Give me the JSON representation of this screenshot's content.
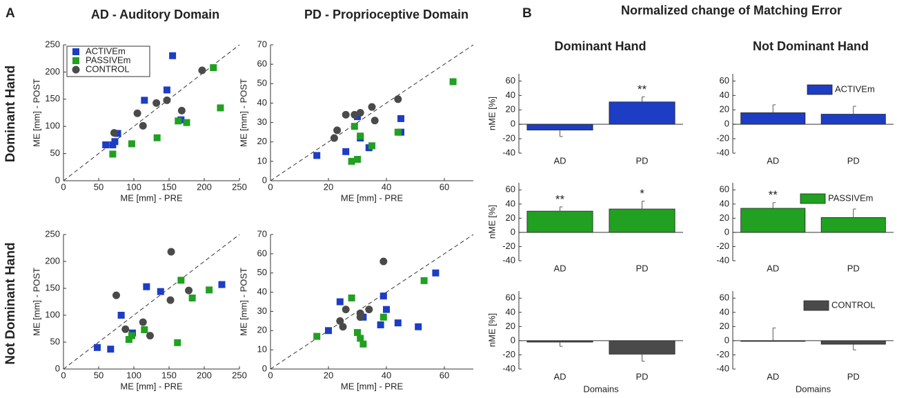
{
  "figure": {
    "panels": [
      "A",
      "B"
    ],
    "scatter_columns": [
      "AD - Auditory Domain",
      "PD - Proprioceptive Domain"
    ],
    "scatter_rows": [
      "Dominant Hand",
      "Not Dominant Hand"
    ],
    "bar_title": "Normalized change of Matching Error",
    "bar_columns": [
      "Dominant Hand",
      "Not Dominant Hand"
    ]
  },
  "chart_data": [
    {
      "type": "scatter",
      "xlabel": "ME [mm] - PRE",
      "ylabel": "ME [mm] - POST",
      "xlim": [
        0,
        250
      ],
      "ylim": [
        0,
        250
      ],
      "xticks": [
        0,
        50,
        100,
        150,
        200,
        250
      ],
      "yticks": [
        0,
        50,
        100,
        150,
        200,
        250
      ],
      "legend": "upper left",
      "series": [
        {
          "name": "ACTIVEm",
          "color": "#1c3dc4",
          "marker": "square",
          "x": [
            60,
            70,
            73,
            77,
            115,
            147,
            155,
            167
          ],
          "values": [
            66,
            66,
            72,
            87,
            148,
            167,
            230,
            112
          ]
        },
        {
          "name": "PASSIVEm",
          "color": "#21a021",
          "marker": "square",
          "x": [
            70,
            97,
            133,
            163,
            175,
            213,
            223
          ],
          "values": [
            49,
            68,
            79,
            110,
            107,
            208,
            134
          ]
        },
        {
          "name": "CONTROL",
          "color": "#4a4a4a",
          "marker": "circle",
          "x": [
            72,
            113,
            105,
            132,
            147,
            168,
            197
          ],
          "values": [
            88,
            101,
            124,
            143,
            148,
            129,
            203
          ]
        }
      ]
    },
    {
      "type": "scatter",
      "xlabel": "ME [mm] - PRE",
      "ylabel": "ME [mm] - POST",
      "xlim": [
        0,
        70
      ],
      "ylim": [
        0,
        70
      ],
      "xticks": [
        0,
        20,
        40,
        60
      ],
      "yticks": [
        0,
        10,
        20,
        30,
        40,
        50,
        60,
        70
      ],
      "series": [
        {
          "color": "#1c3dc4",
          "marker": "square",
          "x": [
            16,
            26,
            30,
            31,
            34,
            45,
            45
          ],
          "values": [
            13,
            15,
            33,
            22,
            17,
            25,
            32
          ]
        },
        {
          "color": "#21a021",
          "marker": "square",
          "x": [
            28,
            29,
            30,
            31,
            35,
            44,
            63
          ],
          "values": [
            10,
            28,
            11,
            23,
            18,
            25,
            51
          ]
        },
        {
          "color": "#4a4a4a",
          "marker": "circle",
          "x": [
            22,
            23,
            26,
            29,
            31,
            35,
            36,
            44
          ],
          "values": [
            22,
            26,
            34,
            34,
            35,
            38,
            31,
            42
          ]
        }
      ]
    },
    {
      "type": "scatter",
      "xlabel": "ME [mm] - PRE",
      "ylabel": "ME [mm] - POST",
      "xlim": [
        0,
        250
      ],
      "ylim": [
        0,
        250
      ],
      "xticks": [
        0,
        50,
        100,
        150,
        200,
        250
      ],
      "yticks": [
        0,
        50,
        100,
        150,
        200,
        250
      ],
      "series": [
        {
          "color": "#1c3dc4",
          "marker": "square",
          "x": [
            48,
            67,
            82,
            98,
            118,
            138,
            225
          ],
          "values": [
            40,
            37,
            100,
            67,
            153,
            144,
            157
          ]
        },
        {
          "color": "#21a021",
          "marker": "square",
          "x": [
            93,
            97,
            115,
            162,
            167,
            183,
            207
          ],
          "values": [
            55,
            62,
            73,
            49,
            165,
            132,
            147
          ]
        },
        {
          "color": "#4a4a4a",
          "marker": "circle",
          "x": [
            75,
            88,
            113,
            123,
            152,
            153,
            178
          ],
          "values": [
            137,
            74,
            87,
            62,
            128,
            218,
            146
          ]
        }
      ]
    },
    {
      "type": "scatter",
      "xlabel": "ME [mm] - PRE",
      "ylabel": "ME [mm] - POST",
      "xlim": [
        0,
        70
      ],
      "ylim": [
        0,
        70
      ],
      "xticks": [
        0,
        20,
        40,
        60
      ],
      "yticks": [
        0,
        10,
        20,
        30,
        40,
        50,
        60,
        70
      ],
      "series": [
        {
          "color": "#1c3dc4",
          "marker": "square",
          "x": [
            20,
            24,
            32,
            38,
            39,
            40,
            44,
            51,
            57
          ],
          "values": [
            20,
            35,
            27,
            23,
            38,
            31,
            24,
            22,
            50
          ]
        },
        {
          "color": "#21a021",
          "marker": "square",
          "x": [
            16,
            28,
            30,
            31,
            32,
            39,
            53
          ],
          "values": [
            17,
            37,
            19,
            16,
            13,
            27,
            46
          ]
        },
        {
          "color": "#4a4a4a",
          "marker": "circle",
          "x": [
            24,
            25,
            26,
            31,
            31,
            34,
            39
          ],
          "values": [
            25,
            22,
            31,
            29,
            27,
            31,
            56
          ]
        }
      ]
    },
    {
      "type": "bar",
      "categories": [
        "AD",
        "PD"
      ],
      "ylabel": "nME [%]",
      "ylim": [
        -40,
        70
      ],
      "yticks": [
        -40,
        -20,
        0,
        20,
        40,
        60
      ],
      "series": [
        {
          "color": "#1c3dc4",
          "values": [
            -8,
            31
          ],
          "errors": [
            9,
            7
          ]
        }
      ],
      "significance": [
        null,
        "**"
      ]
    },
    {
      "type": "bar",
      "categories": [
        "AD",
        "PD"
      ],
      "ylim": [
        -40,
        70
      ],
      "yticks": [
        -40,
        -20,
        0,
        20,
        40,
        60
      ],
      "series": [
        {
          "name": "ACTIVEm",
          "color": "#1c3dc4",
          "values": [
            16,
            14
          ],
          "errors": [
            11,
            11
          ]
        }
      ]
    },
    {
      "type": "bar",
      "categories": [
        "AD",
        "PD"
      ],
      "ylabel": "nME [%]",
      "ylim": [
        -40,
        70
      ],
      "yticks": [
        -40,
        -20,
        0,
        20,
        40,
        60
      ],
      "series": [
        {
          "color": "#21a021",
          "values": [
            30,
            33
          ],
          "errors": [
            6,
            11
          ]
        }
      ],
      "significance": [
        "**",
        "*"
      ]
    },
    {
      "type": "bar",
      "categories": [
        "AD",
        "PD"
      ],
      "ylim": [
        -40,
        70
      ],
      "yticks": [
        -40,
        -20,
        0,
        20,
        40,
        60
      ],
      "series": [
        {
          "name": "PASSIVEm",
          "color": "#21a021",
          "values": [
            34,
            21
          ],
          "errors": [
            8,
            12
          ]
        }
      ],
      "significance": [
        "**",
        null
      ]
    },
    {
      "type": "bar",
      "categories": [
        "AD",
        "PD"
      ],
      "ylabel": "nME [%]",
      "xlabel": "Domains",
      "ylim": [
        -40,
        70
      ],
      "yticks": [
        -40,
        -20,
        0,
        20,
        40,
        60
      ],
      "series": [
        {
          "color": "#4a4a4a",
          "values": [
            -2,
            -19
          ],
          "errors": [
            6,
            10
          ]
        }
      ]
    },
    {
      "type": "bar",
      "categories": [
        "AD",
        "PD"
      ],
      "xlabel": "Domains",
      "ylim": [
        -40,
        70
      ],
      "yticks": [
        -40,
        -20,
        0,
        20,
        40,
        60
      ],
      "series": [
        {
          "name": "CONTROL",
          "color": "#4a4a4a",
          "values": [
            0,
            -5
          ],
          "errors": [
            18,
            8
          ]
        }
      ]
    }
  ]
}
